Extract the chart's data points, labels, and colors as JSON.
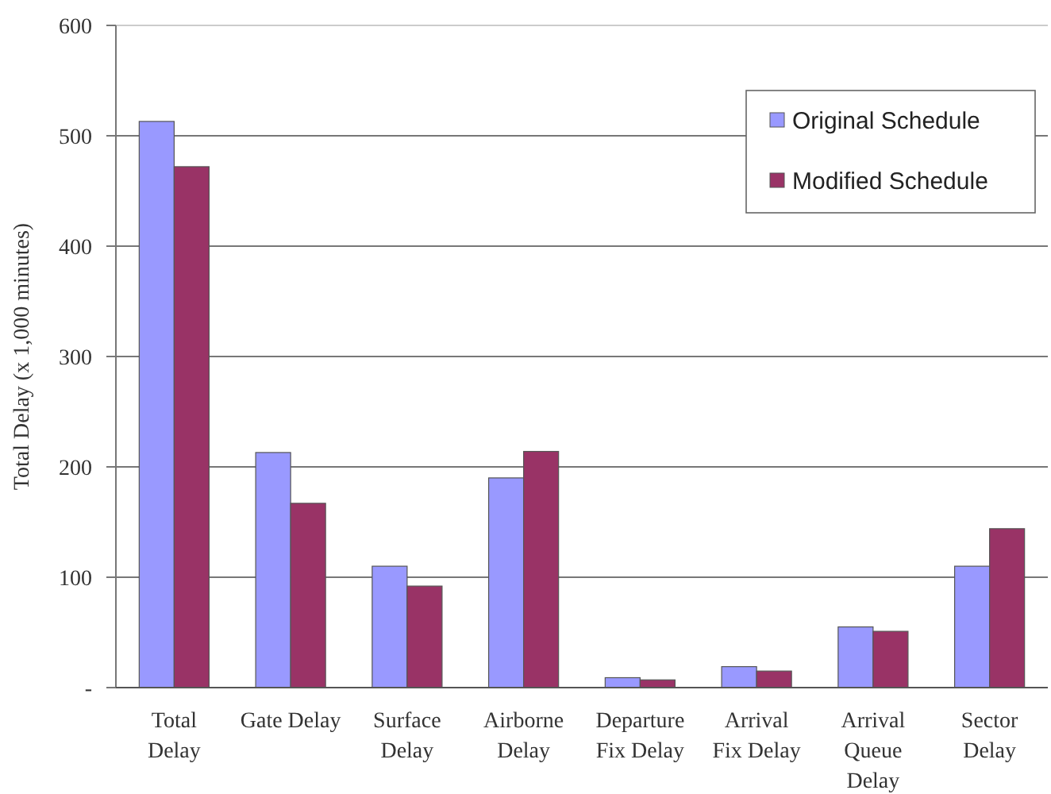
{
  "chart_data": {
    "type": "bar",
    "ylabel": "Total Delay (x 1,000 minutes)",
    "categories": [
      "Total Delay",
      "Gate Delay",
      "Surface Delay",
      "Airborne Delay",
      "Departure Fix Delay",
      "Arrival Fix Delay",
      "Arrival Queue Delay",
      "Sector Delay"
    ],
    "series": [
      {
        "name": "Original Schedule",
        "color": "#9999ff",
        "values": [
          513,
          213,
          110,
          190,
          9,
          19,
          55,
          110
        ]
      },
      {
        "name": "Modified Schedule",
        "color": "#993366",
        "values": [
          472,
          167,
          92,
          214,
          7,
          15,
          51,
          144
        ]
      }
    ],
    "ylim": [
      0,
      600
    ],
    "yticks": [
      {
        "value": 0,
        "label": "-"
      },
      100,
      200,
      300,
      400,
      500,
      600
    ],
    "grid": "y",
    "legend": "top right"
  }
}
